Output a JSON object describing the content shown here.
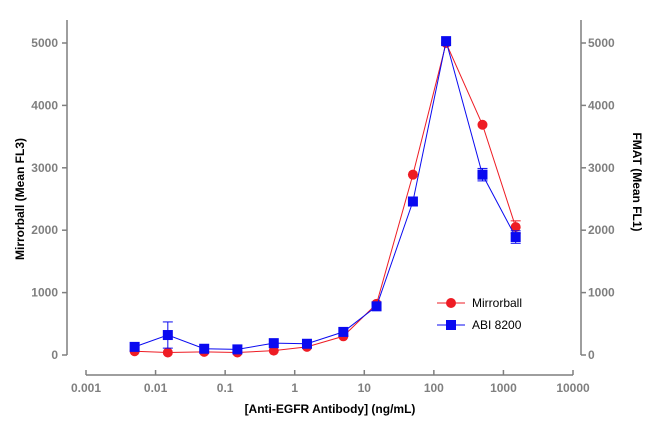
{
  "chart_data": {
    "type": "line",
    "xlabel": "[Anti-EGFR Antibody] (ng/mL)",
    "ylabel": "Mirrorball (Mean FL3)",
    "y2label": "FMAT (Mean FL1)",
    "xscale": "log",
    "xlim": [
      0.001,
      10000
    ],
    "ylim": [
      0,
      5000
    ],
    "y2lim": [
      0,
      5000
    ],
    "xticks": [
      "0.001",
      "0.01",
      "0.1",
      "1",
      "10",
      "100",
      "1000",
      "10000"
    ],
    "yticks": [
      "0",
      "1000",
      "2000",
      "3000",
      "4000",
      "5000"
    ],
    "y2ticks": [
      "0",
      "1000",
      "2000",
      "3000",
      "4000",
      "5000"
    ],
    "legend_position": "bottom-right",
    "x": [
      0.005,
      0.015,
      0.05,
      0.15,
      0.5,
      1.5,
      5,
      15,
      50,
      150,
      500,
      1500
    ],
    "series": [
      {
        "name": "Mirrorball",
        "color": "#ee1c24",
        "marker": "circle",
        "axis": "left",
        "values": [
          60,
          40,
          50,
          40,
          70,
          130,
          300,
          820,
          2890,
          5000,
          3690,
          2050
        ],
        "errors": [
          0,
          0,
          0,
          0,
          0,
          0,
          0,
          0,
          0,
          0,
          0,
          100
        ]
      },
      {
        "name": "ABI 8200",
        "color": "#0a0af0",
        "marker": "square",
        "axis": "right",
        "values": [
          130,
          320,
          100,
          90,
          190,
          180,
          370,
          780,
          2460,
          5030,
          2890,
          1890
        ],
        "errors": [
          0,
          210,
          0,
          0,
          0,
          0,
          0,
          0,
          0,
          0,
          100,
          100
        ]
      }
    ]
  }
}
